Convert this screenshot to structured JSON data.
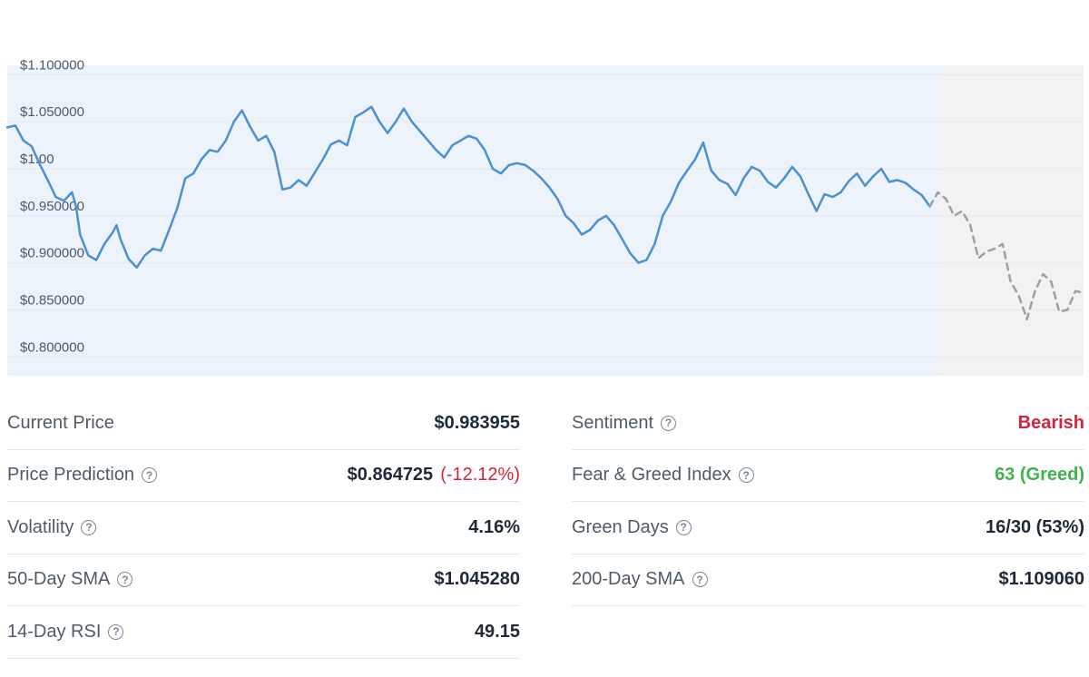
{
  "chart_data": {
    "type": "line",
    "x_label": "",
    "y_label": "",
    "ylim": [
      0.78,
      1.11
    ],
    "grid": true,
    "y_ticks": [
      {
        "value": 1.1,
        "label": "$1.100000"
      },
      {
        "value": 1.05,
        "label": "$1.050000"
      },
      {
        "value": 1.0,
        "label": "$1.00"
      },
      {
        "value": 0.95,
        "label": "$0.950000"
      },
      {
        "value": 0.9,
        "label": "$0.900000"
      },
      {
        "value": 0.85,
        "label": "$0.850000"
      },
      {
        "value": 0.8,
        "label": "$0.800000"
      }
    ],
    "series": [
      {
        "style": "solid",
        "color": "#4a90d2",
        "points": [
          [
            0,
            1.044
          ],
          [
            2,
            1.046
          ],
          [
            4,
            1.03
          ],
          [
            6,
            1.024
          ],
          [
            8,
            1.005
          ],
          [
            10,
            0.988
          ],
          [
            12,
            0.97
          ],
          [
            14,
            0.966
          ],
          [
            16,
            0.975
          ],
          [
            17,
            0.96
          ],
          [
            18,
            0.93
          ],
          [
            20,
            0.908
          ],
          [
            22,
            0.903
          ],
          [
            24,
            0.92
          ],
          [
            26,
            0.932
          ],
          [
            27,
            0.94
          ],
          [
            28,
            0.925
          ],
          [
            30,
            0.904
          ],
          [
            32,
            0.895
          ],
          [
            34,
            0.908
          ],
          [
            36,
            0.915
          ],
          [
            38,
            0.913
          ],
          [
            40,
            0.935
          ],
          [
            42,
            0.958
          ],
          [
            44,
            0.99
          ],
          [
            46,
            0.995
          ],
          [
            48,
            1.01
          ],
          [
            50,
            1.02
          ],
          [
            52,
            1.018
          ],
          [
            54,
            1.03
          ],
          [
            56,
            1.05
          ],
          [
            58,
            1.062
          ],
          [
            60,
            1.045
          ],
          [
            62,
            1.03
          ],
          [
            64,
            1.035
          ],
          [
            66,
            1.018
          ],
          [
            68,
            0.978
          ],
          [
            70,
            0.98
          ],
          [
            72,
            0.988
          ],
          [
            74,
            0.982
          ],
          [
            76,
            0.996
          ],
          [
            78,
            1.01
          ],
          [
            80,
            1.026
          ],
          [
            82,
            1.03
          ],
          [
            84,
            1.025
          ],
          [
            86,
            1.055
          ],
          [
            88,
            1.06
          ],
          [
            90,
            1.066
          ],
          [
            92,
            1.05
          ],
          [
            94,
            1.038
          ],
          [
            96,
            1.05
          ],
          [
            98,
            1.064
          ],
          [
            100,
            1.05
          ],
          [
            102,
            1.04
          ],
          [
            104,
            1.03
          ],
          [
            106,
            1.02
          ],
          [
            108,
            1.012
          ],
          [
            110,
            1.025
          ],
          [
            112,
            1.03
          ],
          [
            114,
            1.035
          ],
          [
            116,
            1.032
          ],
          [
            118,
            1.02
          ],
          [
            120,
            1.0
          ],
          [
            122,
            0.995
          ],
          [
            124,
            1.004
          ],
          [
            126,
            1.006
          ],
          [
            128,
            1.004
          ],
          [
            130,
            0.998
          ],
          [
            132,
            0.99
          ],
          [
            134,
            0.98
          ],
          [
            136,
            0.968
          ],
          [
            138,
            0.95
          ],
          [
            140,
            0.942
          ],
          [
            142,
            0.93
          ],
          [
            144,
            0.935
          ],
          [
            146,
            0.945
          ],
          [
            148,
            0.95
          ],
          [
            150,
            0.94
          ],
          [
            152,
            0.925
          ],
          [
            154,
            0.91
          ],
          [
            156,
            0.9
          ],
          [
            158,
            0.903
          ],
          [
            160,
            0.92
          ],
          [
            162,
            0.95
          ],
          [
            164,
            0.965
          ],
          [
            166,
            0.985
          ],
          [
            168,
            0.998
          ],
          [
            170,
            1.01
          ],
          [
            172,
            1.028
          ],
          [
            174,
            0.998
          ],
          [
            176,
            0.988
          ],
          [
            178,
            0.984
          ],
          [
            180,
            0.972
          ],
          [
            182,
            0.99
          ],
          [
            184,
            1.002
          ],
          [
            186,
            0.998
          ],
          [
            188,
            0.986
          ],
          [
            190,
            0.98
          ],
          [
            192,
            0.99
          ],
          [
            194,
            1.002
          ],
          [
            196,
            0.992
          ],
          [
            198,
            0.973
          ],
          [
            200,
            0.955
          ],
          [
            202,
            0.973
          ],
          [
            204,
            0.97
          ],
          [
            206,
            0.975
          ],
          [
            208,
            0.987
          ],
          [
            210,
            0.995
          ],
          [
            212,
            0.982
          ],
          [
            214,
            0.992
          ],
          [
            216,
            1.0
          ],
          [
            218,
            0.986
          ],
          [
            220,
            0.988
          ],
          [
            222,
            0.985
          ],
          [
            224,
            0.978
          ],
          [
            226,
            0.972
          ],
          [
            228,
            0.96
          ]
        ]
      },
      {
        "style": "dashed",
        "color": "#9aa0a6",
        "points": [
          [
            228,
            0.96
          ],
          [
            230,
            0.975
          ],
          [
            232,
            0.968
          ],
          [
            234,
            0.95
          ],
          [
            236,
            0.955
          ],
          [
            238,
            0.94
          ],
          [
            240,
            0.905
          ],
          [
            242,
            0.912
          ],
          [
            244,
            0.915
          ],
          [
            246,
            0.92
          ],
          [
            248,
            0.88
          ],
          [
            250,
            0.865
          ],
          [
            252,
            0.84
          ],
          [
            254,
            0.87
          ],
          [
            256,
            0.888
          ],
          [
            258,
            0.88
          ],
          [
            260,
            0.848
          ],
          [
            262,
            0.85
          ],
          [
            264,
            0.87
          ],
          [
            266,
            0.868
          ]
        ]
      }
    ],
    "x_range": [
      0,
      266
    ],
    "forecast_start": 228
  },
  "stats": {
    "left": [
      {
        "label": "Current Price",
        "value": "$0.983955",
        "help": false
      },
      {
        "label": "Price Prediction",
        "value": "$0.864725",
        "extra": "(-12.12%)",
        "help": true
      },
      {
        "label": "Volatility",
        "value": "4.16%",
        "help": true
      },
      {
        "label": "50-Day SMA",
        "value": "$1.045280",
        "help": true
      },
      {
        "label": "14-Day RSI",
        "value": "49.15",
        "help": true
      }
    ],
    "right": [
      {
        "label": "Sentiment",
        "value": "Bearish",
        "tone": "red",
        "help": true
      },
      {
        "label": "Fear & Greed Index",
        "value": "63 (Greed)",
        "tone": "green",
        "help": true
      },
      {
        "label": "Green Days",
        "value": "16/30 (53%)",
        "help": true
      },
      {
        "label": "200-Day SMA",
        "value": "$1.109060",
        "help": true
      }
    ]
  },
  "help_glyph": "?"
}
